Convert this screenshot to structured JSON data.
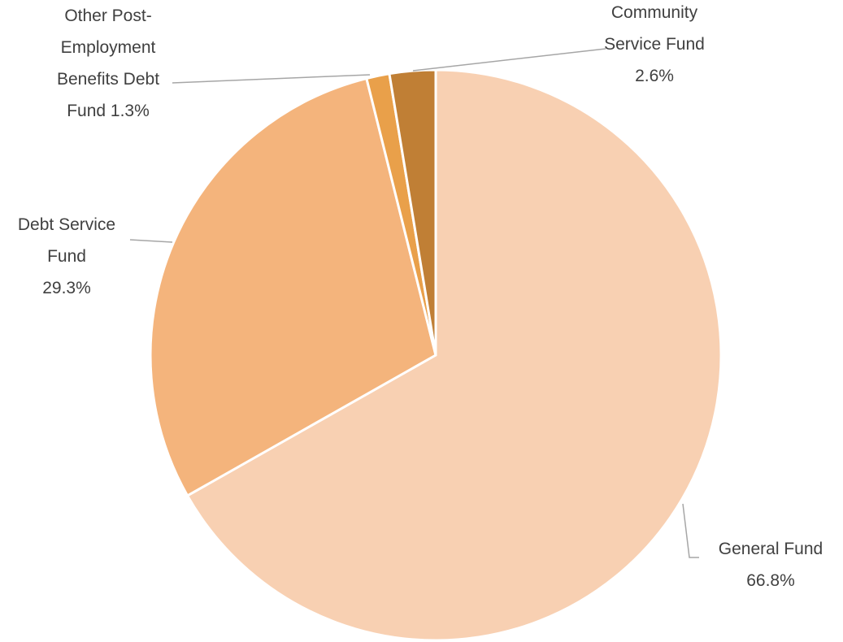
{
  "chart_data": {
    "type": "pie",
    "categories": [
      "General Fund",
      "Debt Service Fund",
      "Other Post-Employment Benefits Debt Fund",
      "Community Service Fund"
    ],
    "values": [
      66.8,
      29.3,
      1.3,
      2.6
    ],
    "value_labels": [
      "66.8%",
      "29.3%",
      "1.3%",
      "2.6%"
    ],
    "colors": [
      "#f8d0b2",
      "#f4b47c",
      "#e9a04a",
      "#c07f35"
    ]
  }
}
